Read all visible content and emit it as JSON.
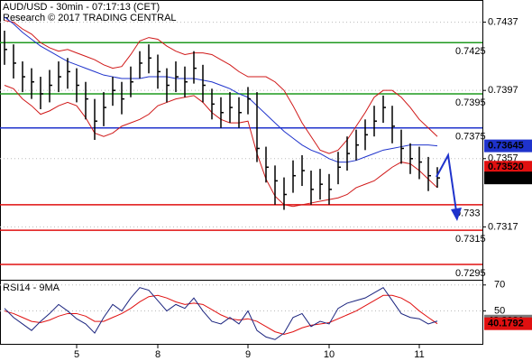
{
  "chart_data": {
    "type": "ohlc",
    "title": "AUD/USD - 30min - 07:17:13 (CET)",
    "subtitle": "Research © 2017 TRADING CENTRAL",
    "categories": [
      null,
      null,
      null,
      null,
      null,
      null,
      null,
      null,
      "5",
      null,
      null,
      null,
      null,
      null,
      null,
      null,
      null,
      "8",
      null,
      null,
      null,
      null,
      null,
      null,
      null,
      null,
      null,
      "9",
      null,
      null,
      null,
      null,
      null,
      null,
      null,
      null,
      "10",
      null,
      null,
      null,
      null,
      null,
      null,
      null,
      null,
      null,
      "11",
      null,
      null
    ],
    "high": [
      0.7432,
      0.7424,
      0.7414,
      0.741,
      0.7405,
      0.7409,
      0.7414,
      0.7416,
      0.741,
      0.7402,
      0.7392,
      0.7396,
      0.7405,
      0.7402,
      0.7411,
      0.742,
      0.7424,
      0.7418,
      0.741,
      0.7414,
      0.7411,
      0.742,
      0.7412,
      0.7398,
      0.7393,
      0.7396,
      0.7393,
      0.7399,
      0.7396,
      0.7364,
      0.7353,
      0.7346,
      0.7356,
      0.7359,
      0.735,
      0.7351,
      0.7348,
      0.7361,
      0.737,
      0.7374,
      0.738,
      0.7388,
      0.7394,
      0.7388,
      0.7374,
      0.7366,
      0.7364,
      0.7358,
      0.7352
    ],
    "low": [
      0.7412,
      0.7404,
      0.7396,
      0.7392,
      0.7386,
      0.739,
      0.7396,
      0.7398,
      0.739,
      0.738,
      0.7368,
      0.7376,
      0.7388,
      0.7383,
      0.7393,
      0.7404,
      0.7407,
      0.7398,
      0.739,
      0.7396,
      0.7393,
      0.7401,
      0.739,
      0.738,
      0.7375,
      0.7378,
      0.7375,
      0.7383,
      0.7355,
      0.7343,
      0.733,
      0.7327,
      0.7337,
      0.7341,
      0.733,
      0.7333,
      0.733,
      0.7342,
      0.735,
      0.7356,
      0.7362,
      0.737,
      0.7378,
      0.7366,
      0.7354,
      0.7348,
      0.7345,
      0.7338,
      0.734
    ],
    "close": [
      0.7421,
      0.7413,
      0.7405,
      0.7402,
      0.7395,
      0.74,
      0.7405,
      0.7408,
      0.74,
      0.7392,
      0.7379,
      0.7387,
      0.7397,
      0.7392,
      0.7402,
      0.7413,
      0.7416,
      0.7408,
      0.74,
      0.7405,
      0.7402,
      0.741,
      0.74,
      0.7389,
      0.7384,
      0.7387,
      0.7384,
      0.7392,
      0.7363,
      0.7352,
      0.7344,
      0.7336,
      0.7347,
      0.735,
      0.7339,
      0.7342,
      0.7339,
      0.7352,
      0.736,
      0.7365,
      0.7371,
      0.7379,
      0.7387,
      0.7376,
      0.7363,
      0.7357,
      0.7355,
      0.7347,
      0.73457
    ],
    "ma": [
      0.744,
      0.7436,
      0.7431,
      0.7427,
      0.7423,
      0.742,
      0.7417,
      0.7414,
      0.7412,
      0.741,
      0.7408,
      0.7406,
      0.7405,
      0.7404,
      0.7404,
      0.7404,
      0.7405,
      0.7405,
      0.7405,
      0.7404,
      0.7404,
      0.7404,
      0.7403,
      0.7402,
      0.74,
      0.7398,
      0.7395,
      0.7393,
      0.7388,
      0.7383,
      0.7378,
      0.7373,
      0.7369,
      0.7365,
      0.7362,
      0.736,
      0.7357,
      0.7355,
      0.7355,
      0.7356,
      0.7358,
      0.736,
      0.7362,
      0.7363,
      0.7364,
      0.7365,
      0.7365,
      0.7365,
      0.73645
    ],
    "bb_upper": [
      0.7438,
      0.7437,
      0.7433,
      0.743,
      0.7425,
      0.7422,
      0.742,
      0.7421,
      0.7419,
      0.7417,
      0.7415,
      0.7412,
      0.741,
      0.7411,
      0.7418,
      0.7426,
      0.7428,
      0.7427,
      0.7423,
      0.742,
      0.7418,
      0.7419,
      0.7419,
      0.7418,
      0.7415,
      0.7412,
      0.7408,
      0.7405,
      0.7405,
      0.7405,
      0.7402,
      0.7397,
      0.7388,
      0.7378,
      0.737,
      0.7362,
      0.736,
      0.7362,
      0.7368,
      0.7376,
      0.7384,
      0.7393,
      0.7397,
      0.7397,
      0.7393,
      0.7387,
      0.738,
      0.7375,
      0.737
    ],
    "bb_lower": [
      0.74,
      0.7398,
      0.7392,
      0.7388,
      0.7383,
      0.7385,
      0.7388,
      0.739,
      0.7388,
      0.7381,
      0.7372,
      0.737,
      0.7372,
      0.7376,
      0.7378,
      0.738,
      0.7383,
      0.7388,
      0.739,
      0.7392,
      0.7393,
      0.7394,
      0.739,
      0.7384,
      0.738,
      0.7378,
      0.7378,
      0.7379,
      0.736,
      0.7345,
      0.7335,
      0.733,
      0.7329,
      0.733,
      0.7331,
      0.7332,
      0.7333,
      0.7334,
      0.7336,
      0.734,
      0.7342,
      0.7344,
      0.7348,
      0.7352,
      0.7355,
      0.7354,
      0.735,
      0.7345,
      0.734
    ],
    "ylim": [
      0.7286,
      0.745
    ],
    "yticks": [
      0.7437,
      0.7397,
      0.7357,
      0.7317
    ],
    "levels": [
      {
        "value": 0.7425,
        "color": "#1f9a1f"
      },
      {
        "value": 0.7395,
        "color": "#1f9a1f"
      },
      {
        "value": 0.7375,
        "color": "#1f33cc"
      },
      {
        "value": 0.733,
        "color": "#e01010"
      },
      {
        "value": 0.7315,
        "color": "#e01010"
      },
      {
        "value": 0.7295,
        "color": "#e01010"
      }
    ],
    "price_tags": [
      {
        "value": 0.73645,
        "color": "#1f33cc"
      },
      {
        "value": 0.7352,
        "label": "0.73520",
        "color": "#e01010"
      },
      {
        "value": 0.73457,
        "color": "#000000"
      }
    ],
    "rsi_title": "RSI14 - 9MA",
    "rsi": [
      52,
      45,
      40,
      35,
      42,
      48,
      55,
      50,
      44,
      40,
      33,
      45,
      55,
      50,
      60,
      68,
      66,
      58,
      50,
      55,
      52,
      60,
      50,
      42,
      40,
      45,
      40,
      50,
      35,
      30,
      28,
      33,
      45,
      48,
      38,
      42,
      40,
      52,
      56,
      58,
      60,
      64,
      68,
      58,
      48,
      45,
      44,
      40,
      42.2021
    ],
    "rsi_ma": [
      50,
      48,
      45,
      42,
      41,
      43,
      46,
      48,
      48,
      46,
      42,
      42,
      45,
      48,
      52,
      57,
      61,
      62,
      60,
      57,
      55,
      56,
      55,
      51,
      47,
      44,
      43,
      44,
      42,
      38,
      34,
      32,
      34,
      37,
      39,
      40,
      41,
      44,
      47,
      50,
      54,
      58,
      62,
      62,
      60,
      56,
      50,
      45,
      40.1792
    ],
    "rsi_ylim": [
      24,
      74
    ],
    "rsi_yticks": [
      70,
      50
    ],
    "rsi_tags": [
      {
        "value": 42.2021,
        "color": "#7a7a7a"
      },
      {
        "value": 40.1792,
        "color": "#e01010"
      }
    ],
    "colors": {
      "candle": "#000000",
      "ma": "#1f33cc",
      "bands": "#d01818",
      "rsi": "#1a237e",
      "rsi_ma": "#e01010"
    }
  }
}
